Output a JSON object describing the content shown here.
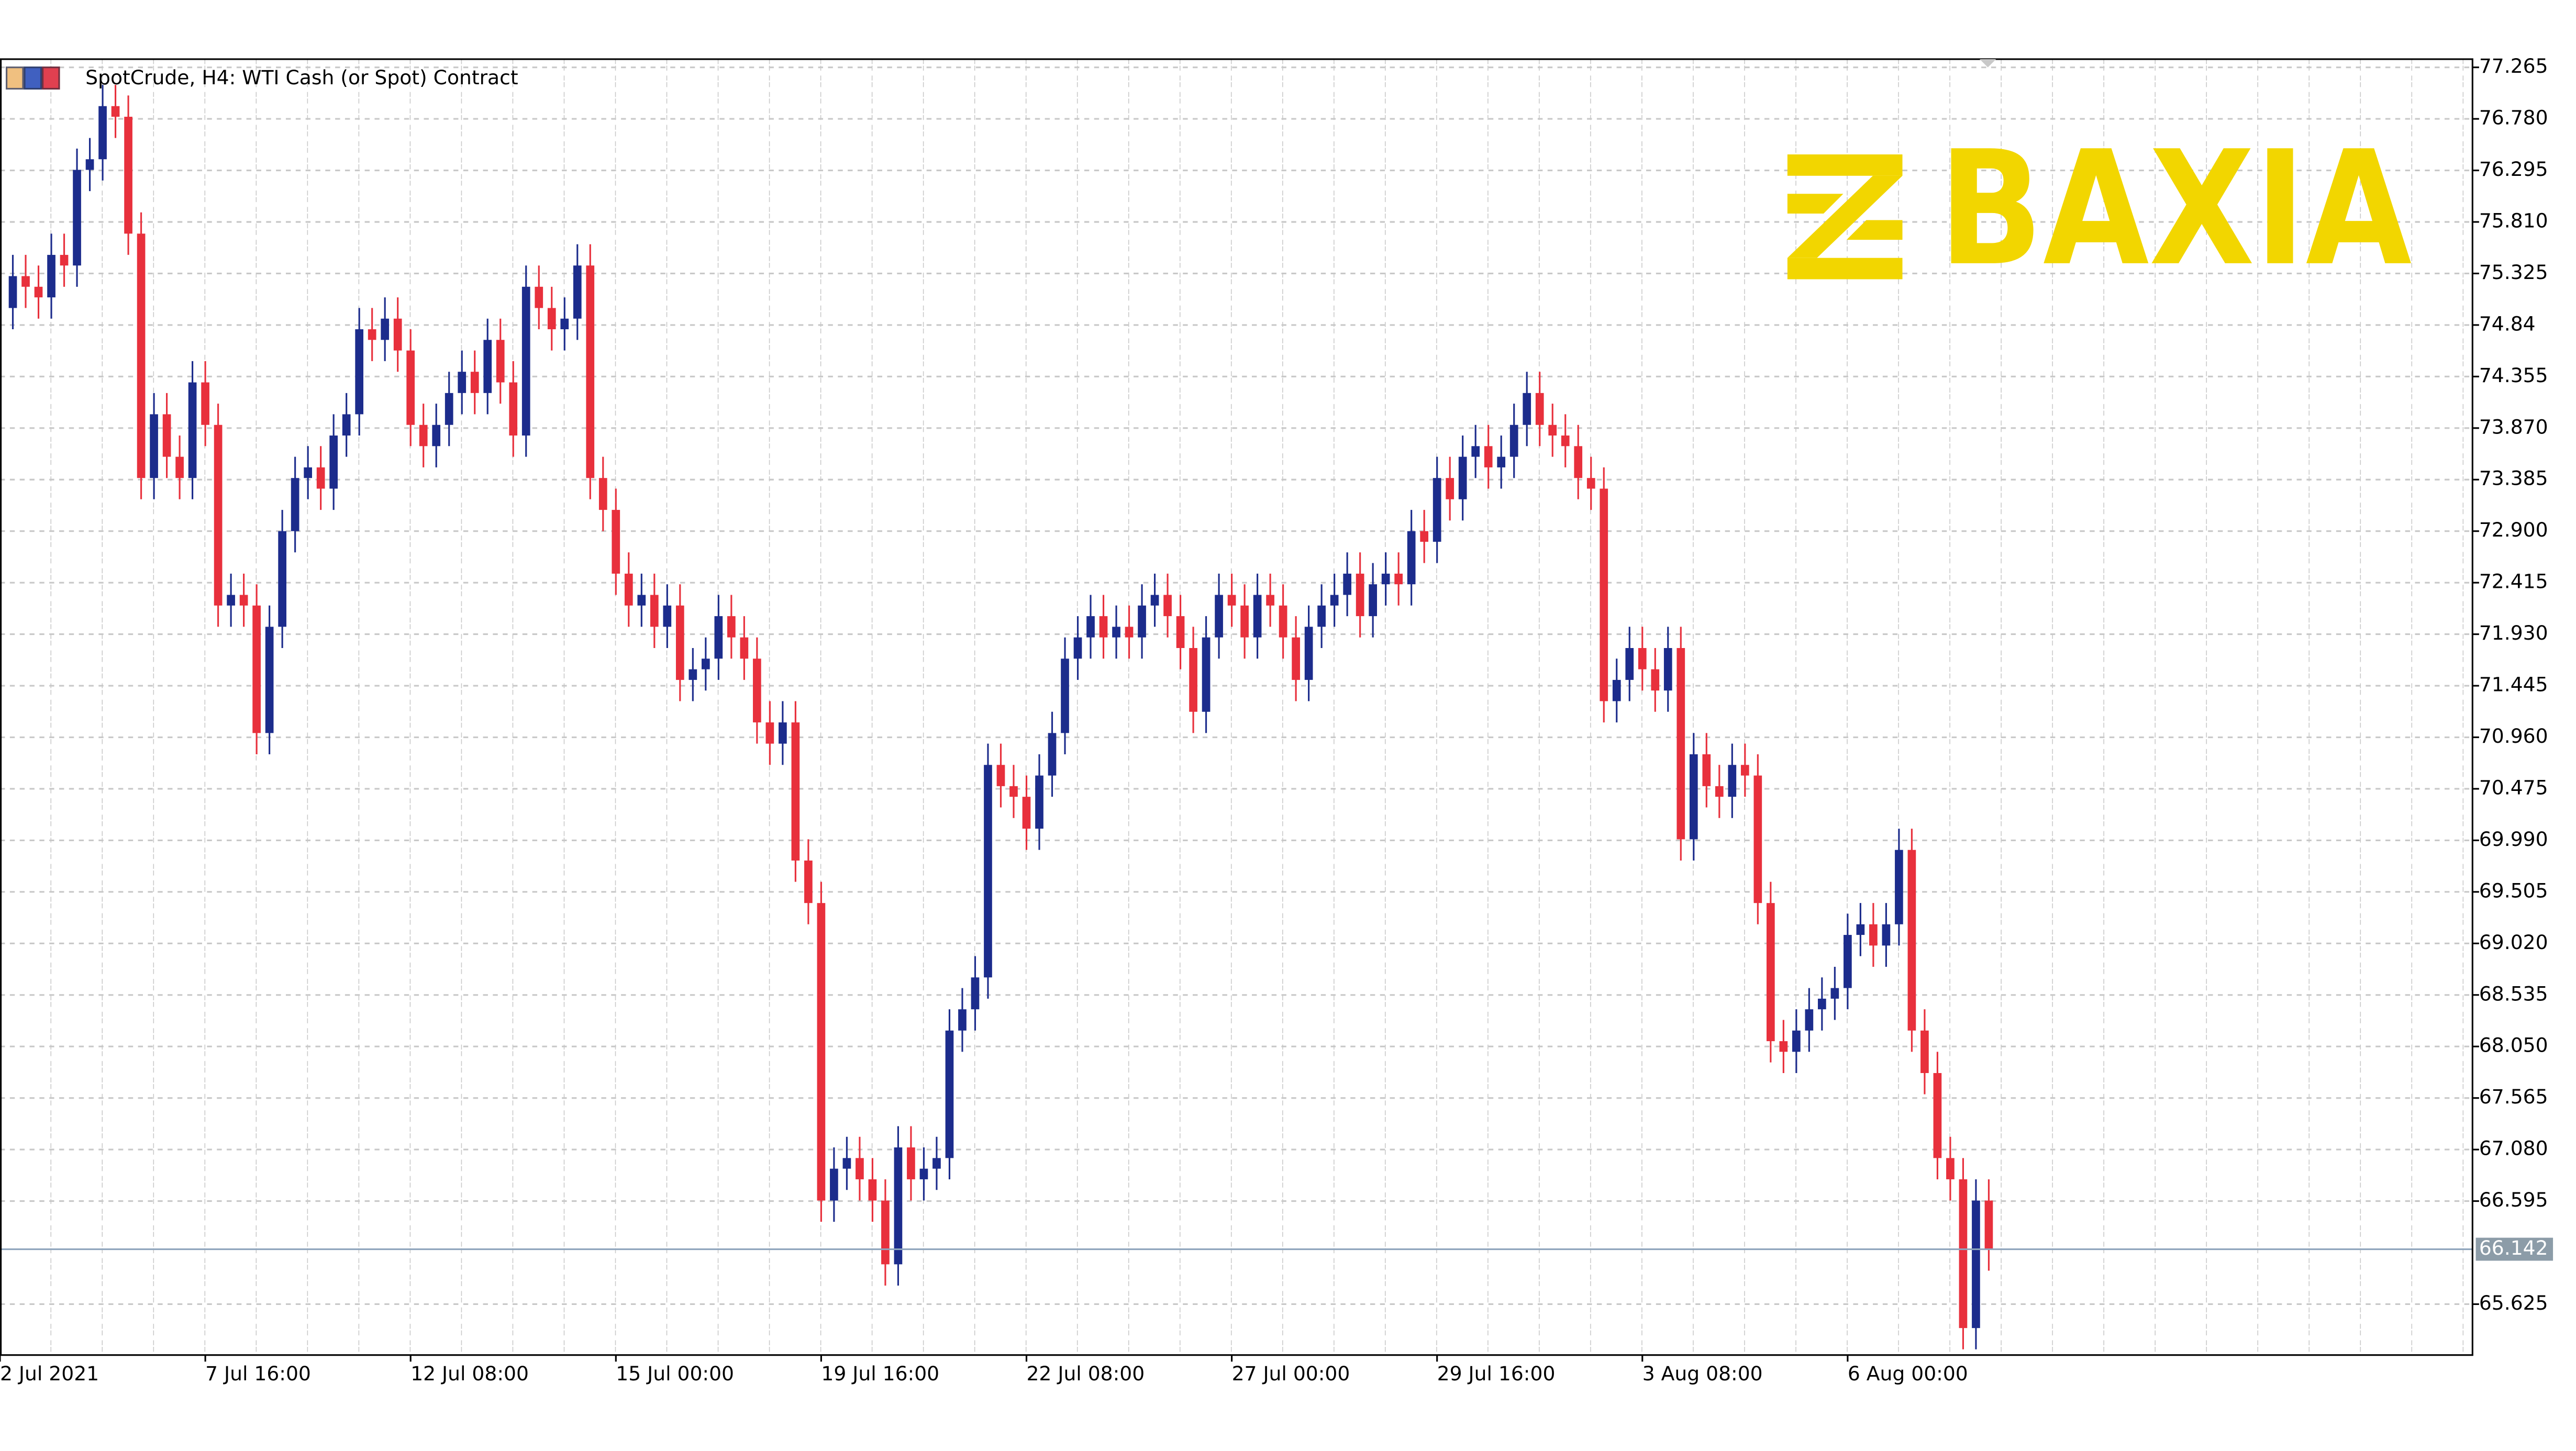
{
  "chart_data": {
    "type": "candlestick",
    "title": "SpotCrude, H4:  WTI Cash (or Spot) Contract",
    "logo": "BAXIA",
    "bull_color": "#1c2c8c",
    "bear_color": "#e8303c",
    "grid": true,
    "xlim": [
      0,
      192.7
    ],
    "xticks": [
      {
        "value": 0,
        "label": "2 Jul 2021"
      },
      {
        "value": 16,
        "label": "7 Jul 16:00"
      },
      {
        "value": 32,
        "label": "12 Jul 08:00"
      },
      {
        "value": 48,
        "label": "15 Jul 00:00"
      },
      {
        "value": 64,
        "label": "19 Jul 16:00"
      },
      {
        "value": 80,
        "label": "22 Jul 08:00"
      },
      {
        "value": 96,
        "label": "27 Jul 00:00"
      },
      {
        "value": 112,
        "label": "29 Jul 16:00"
      },
      {
        "value": 128,
        "label": "3 Aug 08:00"
      },
      {
        "value": 144,
        "label": "6 Aug 00:00"
      }
    ],
    "ylim": [
      65.146,
      77.342
    ],
    "yticks": [
      77.265,
      {
        "value": 76.78,
        "label": "76.780"
      },
      76.295,
      {
        "value": 75.81,
        "label": "75.810"
      },
      75.325,
      74.84,
      74.355,
      {
        "value": 73.87,
        "label": "73.870"
      },
      73.385,
      {
        "value": 72.9,
        "label": "72.900"
      },
      72.415,
      {
        "value": 71.93,
        "label": "71.930"
      },
      71.445,
      {
        "value": 70.96,
        "label": "70.960"
      },
      70.475,
      {
        "value": 69.99,
        "label": "69.990"
      },
      69.505,
      {
        "value": 69.02,
        "label": "69.020"
      },
      68.535,
      {
        "value": 68.05,
        "label": "68.050"
      },
      67.565,
      {
        "value": 67.08,
        "label": "67.080"
      },
      66.595,
      65.625
    ],
    "current_price": 66.142,
    "open": [
      75.0,
      75.3,
      75.2,
      75.1,
      75.5,
      75.4,
      76.3,
      76.4,
      76.9,
      76.8,
      75.7,
      73.4,
      74.0,
      73.6,
      73.4,
      74.3,
      73.9,
      72.2,
      72.3,
      72.2,
      71.0,
      72.0,
      72.9,
      73.4,
      73.5,
      73.3,
      73.8,
      74.0,
      74.8,
      74.7,
      74.9,
      74.6,
      73.9,
      73.7,
      73.9,
      74.2,
      74.4,
      74.2,
      74.7,
      74.3,
      73.8,
      75.2,
      75.0,
      74.8,
      74.9,
      75.4,
      73.4,
      73.1,
      72.5,
      72.2,
      72.3,
      72.0,
      72.2,
      71.5,
      71.6,
      71.7,
      72.1,
      71.9,
      71.7,
      71.1,
      70.9,
      71.1,
      69.8,
      69.4,
      66.6,
      66.9,
      67.0,
      66.8,
      66.6,
      66.0,
      67.1,
      66.8,
      66.9,
      67.0,
      68.2,
      68.4,
      68.7,
      70.7,
      70.5,
      70.4,
      70.1,
      70.6,
      71.0,
      71.7,
      71.9,
      72.1,
      71.9,
      72.0,
      71.9,
      72.2,
      72.3,
      72.1,
      71.8,
      71.2,
      71.9,
      72.3,
      72.2,
      71.9,
      72.3,
      72.2,
      71.9,
      71.5,
      72.0,
      72.2,
      72.3,
      72.5,
      72.1,
      72.4,
      72.5,
      72.4,
      72.9,
      72.8,
      73.4,
      73.2,
      73.6,
      73.7,
      73.5,
      73.6,
      73.9,
      74.2,
      73.9,
      73.8,
      73.7,
      73.4,
      73.3,
      71.3,
      71.5,
      71.8,
      71.6,
      71.4,
      71.8,
      70.0,
      70.8,
      70.5,
      70.4,
      70.7,
      70.6,
      69.4,
      68.1,
      68.0,
      68.2,
      68.4,
      68.5,
      68.6,
      69.1,
      69.2,
      69.0,
      69.2,
      69.9,
      68.2,
      67.8,
      67.0,
      66.8,
      65.4,
      66.6
    ],
    "high": [
      75.5,
      75.5,
      75.4,
      75.7,
      75.7,
      76.5,
      76.6,
      77.1,
      77.1,
      77.0,
      75.9,
      74.2,
      74.2,
      73.8,
      74.5,
      74.5,
      74.1,
      72.5,
      72.5,
      72.4,
      72.2,
      73.1,
      73.6,
      73.7,
      73.7,
      74.0,
      74.2,
      75.0,
      75.0,
      75.1,
      75.1,
      74.8,
      74.1,
      74.1,
      74.4,
      74.6,
      74.6,
      74.9,
      74.9,
      74.5,
      75.4,
      75.4,
      75.2,
      75.1,
      75.6,
      75.6,
      73.6,
      73.3,
      72.7,
      72.5,
      72.5,
      72.4,
      72.4,
      71.8,
      71.9,
      72.3,
      72.3,
      72.1,
      71.9,
      71.3,
      71.3,
      71.3,
      70.0,
      69.6,
      67.1,
      67.2,
      67.2,
      67.0,
      66.8,
      67.3,
      67.3,
      67.1,
      67.2,
      68.4,
      68.6,
      68.9,
      70.9,
      70.9,
      70.7,
      70.6,
      70.8,
      71.2,
      71.9,
      72.1,
      72.3,
      72.3,
      72.2,
      72.2,
      72.4,
      72.5,
      72.5,
      72.3,
      72.0,
      72.1,
      72.5,
      72.5,
      72.4,
      72.5,
      72.5,
      72.4,
      72.1,
      72.2,
      72.4,
      72.5,
      72.7,
      72.7,
      72.6,
      72.7,
      72.7,
      73.1,
      73.1,
      73.6,
      73.6,
      73.8,
      73.9,
      73.9,
      73.8,
      74.1,
      74.4,
      74.4,
      74.1,
      74.0,
      73.9,
      73.6,
      73.5,
      71.7,
      72.0,
      72.0,
      71.8,
      72.0,
      72.0,
      71.0,
      71.0,
      70.7,
      70.9,
      70.9,
      70.8,
      69.6,
      68.3,
      68.4,
      68.6,
      68.7,
      68.8,
      69.3,
      69.4,
      69.4,
      69.4,
      70.1,
      70.1,
      68.4,
      68.0,
      67.2,
      67.0,
      66.8,
      66.8
    ],
    "low": [
      74.8,
      75.0,
      74.9,
      74.9,
      75.2,
      75.2,
      76.1,
      76.2,
      76.6,
      75.5,
      73.2,
      73.2,
      73.4,
      73.2,
      73.2,
      73.7,
      72.0,
      72.0,
      72.0,
      70.8,
      70.8,
      71.8,
      72.7,
      73.2,
      73.1,
      73.1,
      73.6,
      73.8,
      74.5,
      74.5,
      74.4,
      73.7,
      73.5,
      73.5,
      73.7,
      74.0,
      74.0,
      74.0,
      74.1,
      73.6,
      73.6,
      74.8,
      74.6,
      74.6,
      74.7,
      73.2,
      72.9,
      72.3,
      72.0,
      72.0,
      71.8,
      71.8,
      71.3,
      71.3,
      71.4,
      71.5,
      71.7,
      71.5,
      70.9,
      70.7,
      70.7,
      69.6,
      69.2,
      66.4,
      66.4,
      66.7,
      66.6,
      66.4,
      65.8,
      65.8,
      66.6,
      66.6,
      66.7,
      66.8,
      68.0,
      68.2,
      68.5,
      70.3,
      70.2,
      69.9,
      69.9,
      70.4,
      70.8,
      71.5,
      71.7,
      71.7,
      71.7,
      71.7,
      71.7,
      72.0,
      71.9,
      71.6,
      71.0,
      71.0,
      71.7,
      72.0,
      71.7,
      71.7,
      72.0,
      71.7,
      71.3,
      71.3,
      71.8,
      72.0,
      72.1,
      71.9,
      71.9,
      72.2,
      72.2,
      72.2,
      72.6,
      72.6,
      73.0,
      73.0,
      73.4,
      73.3,
      73.3,
      73.4,
      73.7,
      73.7,
      73.6,
      73.5,
      73.2,
      73.1,
      71.1,
      71.1,
      71.3,
      71.4,
      71.2,
      71.2,
      69.8,
      69.8,
      70.3,
      70.2,
      70.2,
      70.4,
      69.2,
      67.9,
      67.8,
      67.8,
      68.0,
      68.2,
      68.3,
      68.4,
      68.9,
      68.8,
      68.8,
      69.0,
      68.0,
      67.6,
      66.8,
      66.6,
      65.2,
      65.2,
      65.94
    ],
    "close": [
      75.3,
      75.2,
      75.1,
      75.5,
      75.4,
      76.3,
      76.4,
      76.9,
      76.8,
      75.7,
      73.4,
      74.0,
      73.6,
      73.4,
      74.3,
      73.9,
      72.2,
      72.3,
      72.2,
      71.0,
      72.0,
      72.9,
      73.4,
      73.5,
      73.3,
      73.8,
      74.0,
      74.8,
      74.7,
      74.9,
      74.6,
      73.9,
      73.7,
      73.9,
      74.2,
      74.4,
      74.2,
      74.7,
      74.3,
      73.8,
      75.2,
      75.0,
      74.8,
      74.9,
      75.4,
      73.4,
      73.1,
      72.5,
      72.2,
      72.3,
      72.0,
      72.2,
      71.5,
      71.6,
      71.7,
      72.1,
      71.9,
      71.7,
      71.1,
      70.9,
      71.1,
      69.8,
      69.4,
      66.6,
      66.9,
      67.0,
      66.8,
      66.6,
      66.0,
      67.1,
      66.8,
      66.9,
      67.0,
      68.2,
      68.4,
      68.7,
      70.7,
      70.5,
      70.4,
      70.1,
      70.6,
      71.0,
      71.7,
      71.9,
      72.1,
      71.9,
      72.0,
      71.9,
      72.2,
      72.3,
      72.1,
      71.8,
      71.2,
      71.9,
      72.3,
      72.2,
      71.9,
      72.3,
      72.2,
      71.9,
      71.5,
      72.0,
      72.2,
      72.3,
      72.5,
      72.1,
      72.4,
      72.5,
      72.4,
      72.9,
      72.8,
      73.4,
      73.2,
      73.6,
      73.7,
      73.5,
      73.6,
      73.9,
      74.2,
      73.9,
      73.8,
      73.7,
      73.4,
      73.3,
      71.3,
      71.5,
      71.8,
      71.6,
      71.4,
      71.8,
      70.0,
      70.8,
      70.5,
      70.4,
      70.7,
      70.6,
      69.4,
      68.1,
      68.0,
      68.2,
      68.4,
      68.5,
      68.6,
      69.1,
      69.2,
      69.0,
      69.2,
      69.9,
      68.2,
      67.8,
      67.0,
      66.8,
      65.4,
      66.6,
      66.14
    ]
  }
}
